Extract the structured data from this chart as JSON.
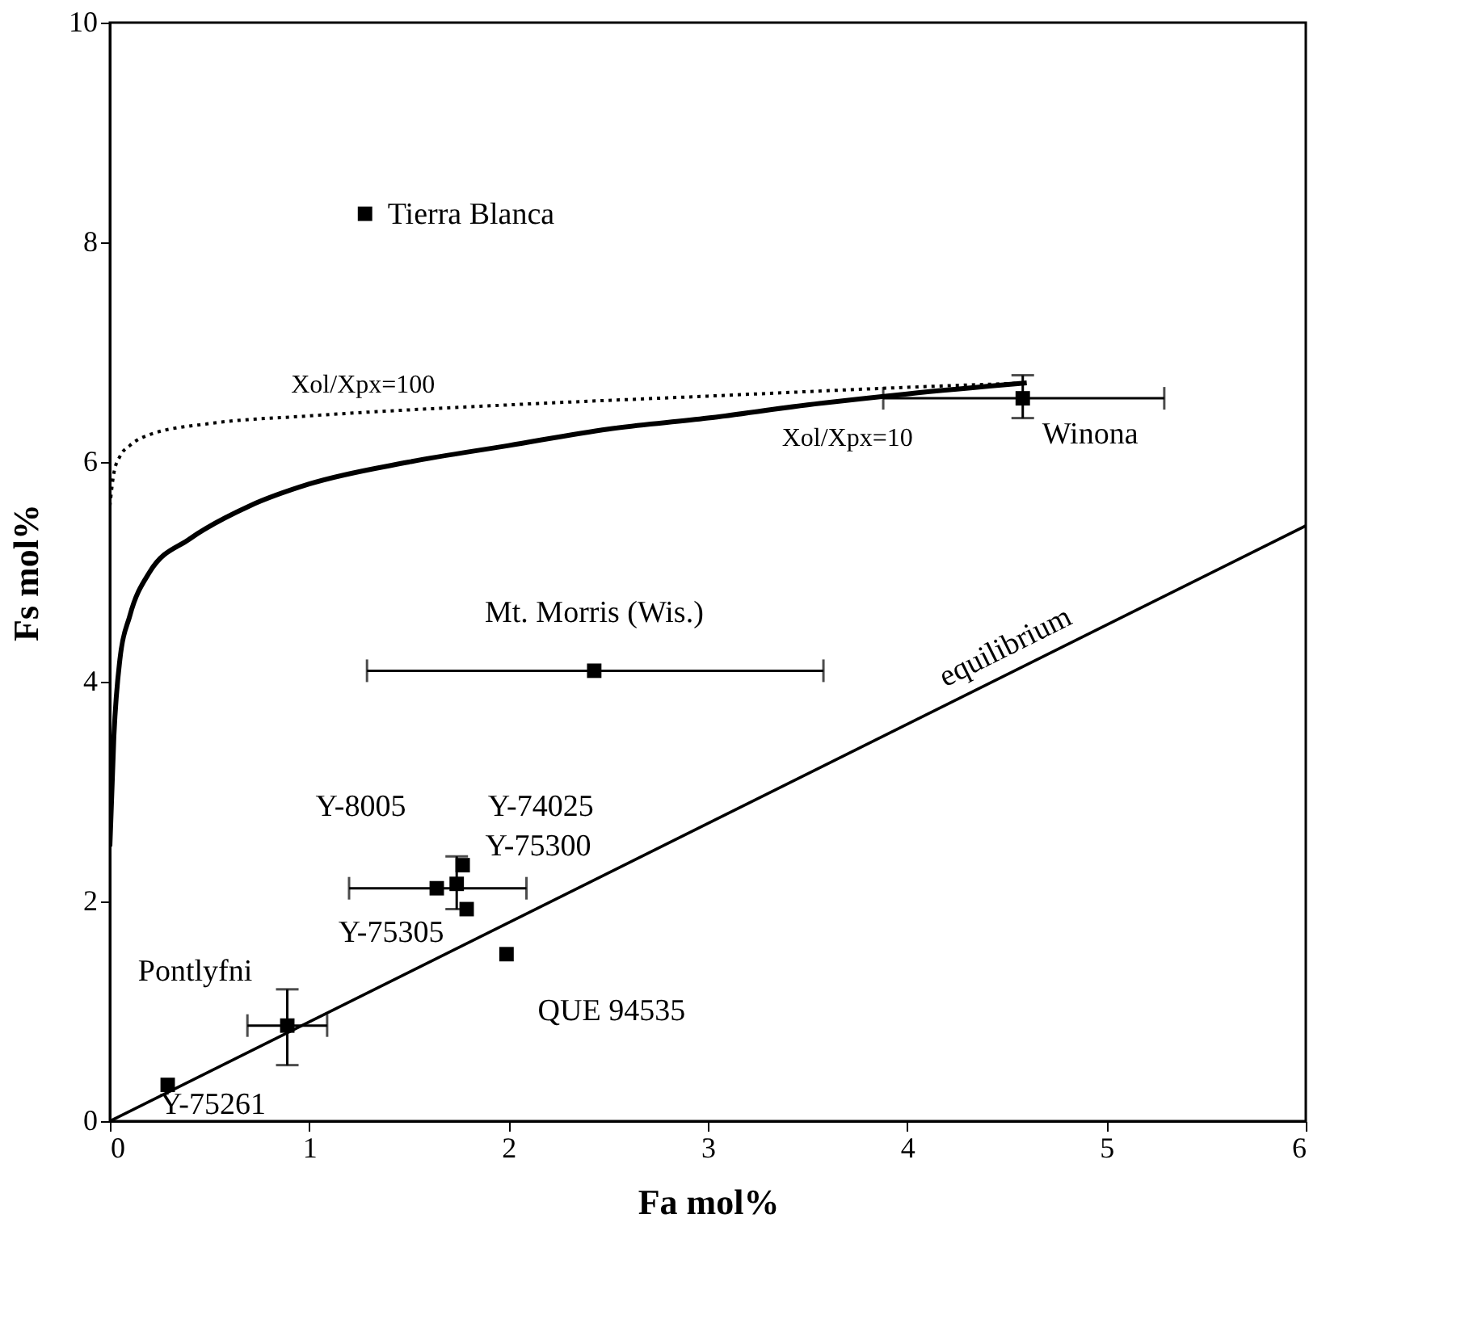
{
  "chart_data": {
    "type": "scatter",
    "xlabel": "Fa mol%",
    "ylabel": "Fs mol%",
    "xlim": [
      0,
      6
    ],
    "ylim": [
      0,
      10
    ],
    "xticks": [
      0,
      1,
      2,
      3,
      4,
      5,
      6
    ],
    "yticks": [
      0,
      2,
      4,
      6,
      8,
      10
    ],
    "grid": false,
    "series": [
      {
        "color": "#000000",
        "marker": "square",
        "x": [
          1.28,
          4.58,
          2.43,
          1.64,
          1.74,
          1.77,
          1.79,
          1.99,
          0.89,
          0.29
        ],
        "values": [
          8.26,
          6.58,
          4.1,
          2.12,
          2.16,
          2.33,
          1.93,
          1.52,
          0.87,
          0.33
        ],
        "value_labels": [
          "Tierra Blanca",
          "Winona",
          "Mt. Morris (Wis.)",
          "Y-8005",
          "Y-74025",
          "Y-75300",
          "Y-75305",
          "QUE 94535",
          "Pontlyfni",
          "Y-75261"
        ],
        "errors": [
          null,
          [
            6.4,
            6.79
          ],
          null,
          null,
          [
            1.93,
            2.41
          ],
          null,
          null,
          null,
          [
            0.51,
            1.2
          ],
          null
        ],
        "xerrors": [
          null,
          [
            3.88,
            5.29
          ],
          [
            1.29,
            3.58
          ],
          [
            1.2,
            2.09
          ],
          null,
          null,
          null,
          null,
          [
            0.69,
            1.09
          ],
          null
        ]
      },
      {
        "type": "line",
        "color": "#000000",
        "line_style": "solid",
        "x": [
          0,
          0.02,
          0.05,
          0.1,
          0.2,
          0.4,
          0.7,
          1.0,
          1.5,
          2.0,
          2.5,
          3.0,
          3.5,
          4.0,
          4.6
        ],
        "values": [
          2.5,
          3.5,
          4.2,
          4.6,
          5.0,
          5.3,
          5.6,
          5.8,
          6.0,
          6.15,
          6.3,
          6.4,
          6.52,
          6.62,
          6.72
        ]
      },
      {
        "type": "line",
        "color": "#000000",
        "line_style": "dotted",
        "x": [
          0,
          0.02,
          0.05,
          0.1,
          0.2,
          0.5,
          1.0,
          2.0,
          3.0,
          4.0,
          4.6
        ],
        "values": [
          5.6,
          5.9,
          6.05,
          6.15,
          6.25,
          6.35,
          6.42,
          6.52,
          6.6,
          6.68,
          6.72
        ]
      },
      {
        "type": "line",
        "color": "#000000",
        "line_style": "solid",
        "x": [
          0,
          6
        ],
        "values": [
          0,
          5.42
        ]
      }
    ],
    "annotations": [
      {
        "text": "Xol/Xpx=100",
        "x": 1.27,
        "y": 6.41
      },
      {
        "text": "Xol/Xpx=10",
        "x": 3.7,
        "y": 6.57
      },
      {
        "text": "equilibrium",
        "x": 4.55,
        "y": 4.11
      }
    ]
  }
}
